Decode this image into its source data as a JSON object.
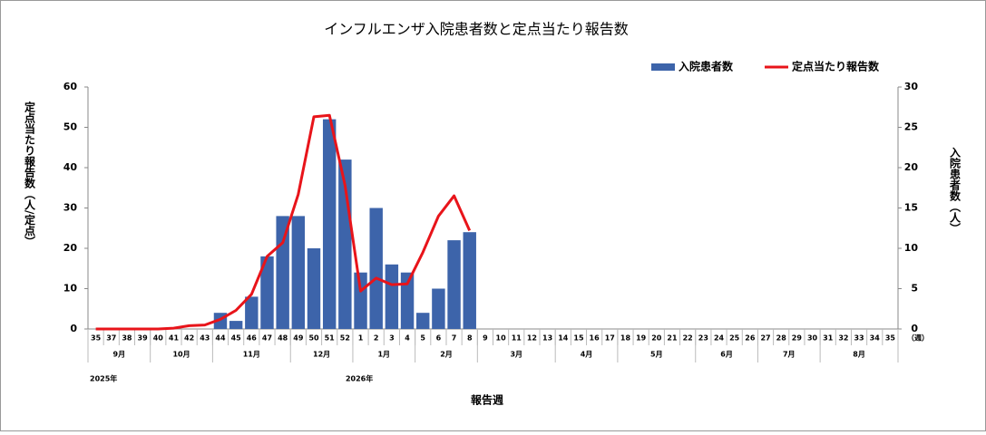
{
  "chart_data": {
    "type": "bar_line",
    "title": "インフルエンザ入院患者数と定点当たり報告数",
    "y_label": "定点当たり報告数（人/定点）",
    "y2_label": "入院患者数（人）",
    "x_label": "報告週",
    "x_unit": "（週）",
    "categories": [
      "35",
      "37",
      "38",
      "39",
      "40",
      "41",
      "42",
      "43",
      "44",
      "45",
      "46",
      "47",
      "48",
      "49",
      "50",
      "51",
      "52",
      "1",
      "2",
      "3",
      "4",
      "5",
      "6",
      "7",
      "8",
      "9",
      "10",
      "11",
      "12",
      "13",
      "14",
      "15",
      "16",
      "17",
      "18",
      "19",
      "20",
      "21",
      "22",
      "23",
      "24",
      "25",
      "26",
      "27",
      "28",
      "29",
      "30",
      "31",
      "32",
      "33",
      "34",
      "35"
    ],
    "months": [
      "9月",
      "10月",
      "11月",
      "12月",
      "1月",
      "2月",
      "3月",
      "4月",
      "5月",
      "6月",
      "7月",
      "8月"
    ],
    "years": [
      "2025年",
      "2026年"
    ],
    "series": [
      {
        "name": "入院患者数",
        "color": "#3d64aa",
        "kind": "bar",
        "values": [
          0,
          0,
          0,
          0,
          0,
          0,
          0,
          0,
          4,
          2,
          8,
          18,
          28,
          28,
          20,
          52,
          42,
          14,
          30,
          16,
          14,
          4,
          10,
          22,
          24,
          null,
          null,
          null,
          null,
          null,
          null,
          null,
          null,
          null,
          null,
          null,
          null,
          null,
          null,
          null,
          null,
          null,
          null,
          null,
          null,
          null,
          null,
          null,
          null,
          null,
          null,
          null
        ]
      },
      {
        "name": "定点当たり報告数",
        "color": "#e8141a",
        "kind": "line",
        "axis": "y2",
        "values": [
          0,
          0,
          0,
          0,
          0,
          0.1,
          0.4,
          0.5,
          1.2,
          2.3,
          4.3,
          9,
          10.7,
          16.7,
          26.3,
          26.5,
          17.8,
          4.7,
          6.3,
          5.5,
          5.6,
          9.5,
          14,
          16.5,
          12.2,
          null,
          null,
          null,
          null,
          null,
          null,
          null,
          null,
          null,
          null,
          null,
          null,
          null,
          null,
          null,
          null,
          null,
          null,
          null,
          null,
          null,
          null,
          null,
          null,
          null,
          null,
          null
        ]
      }
    ],
    "ylim": [
      0,
      60
    ],
    "yticks": [
      0,
      10,
      20,
      30,
      40,
      50,
      60
    ],
    "y2lim": [
      0,
      30
    ],
    "y2ticks": [
      0,
      5,
      10,
      15,
      20,
      25,
      30
    ],
    "grid": false
  }
}
